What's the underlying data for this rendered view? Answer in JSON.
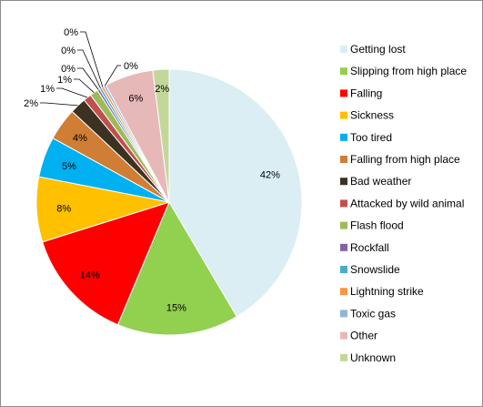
{
  "chart_data": {
    "type": "pie",
    "title": "",
    "start_angle_deg": 0,
    "direction": "clockwise",
    "legend_position": "right",
    "slices": [
      {
        "name": "Getting lost",
        "value": 42,
        "label": "42%",
        "color": "#DAEEF3"
      },
      {
        "name": "Slipping from high place",
        "value": 15,
        "label": "15%",
        "color": "#92D050"
      },
      {
        "name": "Falling",
        "value": 14,
        "label": "14%",
        "color": "#FF0000"
      },
      {
        "name": "Sickness",
        "value": 8,
        "label": "8%",
        "color": "#FFC000"
      },
      {
        "name": "Too tired",
        "value": 5,
        "label": "5%",
        "color": "#00B0F0"
      },
      {
        "name": "Falling from high place",
        "value": 4,
        "label": "4%",
        "color": "#D07E35"
      },
      {
        "name": "Bad weather",
        "value": 2,
        "label": "2%",
        "color": "#3B3222"
      },
      {
        "name": "Attacked by wild animal",
        "value": 1,
        "label": "1%",
        "color": "#C0504D"
      },
      {
        "name": "Flash flood",
        "value": 1,
        "label": "1%",
        "color": "#9BBB59"
      },
      {
        "name": "Rockfall",
        "value": 0.3,
        "label": "0%",
        "color": "#8064A2"
      },
      {
        "name": "Snowslide",
        "value": 0.3,
        "label": "0%",
        "color": "#4BACC6"
      },
      {
        "name": "Lightning strike",
        "value": 0.3,
        "label": "0%",
        "color": "#F79646"
      },
      {
        "name": "Toxic gas",
        "value": 0.3,
        "label": "0%",
        "color": "#95B3D7"
      },
      {
        "name": "Other",
        "value": 6,
        "label": "6%",
        "color": "#E6B9B8"
      },
      {
        "name": "Unknown",
        "value": 2,
        "label": "2%",
        "color": "#C4D79B"
      }
    ]
  }
}
